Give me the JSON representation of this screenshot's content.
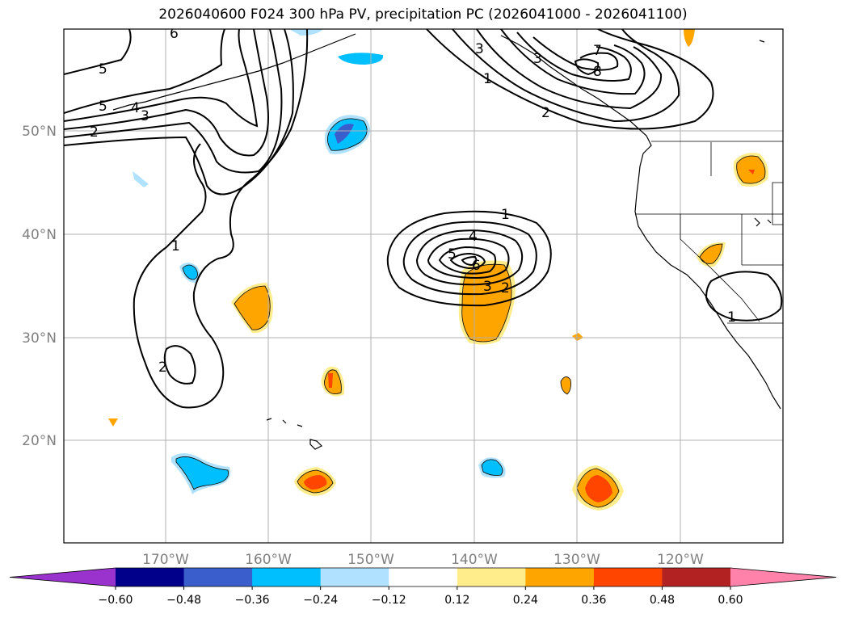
{
  "title": "2026040600 F024 300 hPa PV, precipitation PC (2026041000 - 2026041100)",
  "lat_labels": [
    "50°N",
    "40°N",
    "30°N",
    "20°N"
  ],
  "lon_labels": [
    "170°W",
    "160°W",
    "150°W",
    "140°W",
    "130°W",
    "120°W"
  ],
  "colorbar": {
    "colors": [
      "#9a32cd",
      "#00008b",
      "#3a5fcd",
      "#00bfff",
      "#b0e2ff",
      "#ffffff",
      "#ffec8b",
      "#ffa500",
      "#ff4500",
      "#b22222",
      "#ff82ab"
    ],
    "tick_labels": [
      "−0.60",
      "−0.48",
      "−0.36",
      "−0.24",
      "−0.12",
      "0.12",
      "0.24",
      "0.36",
      "0.48",
      "0.60"
    ]
  },
  "contour_labels": [
    {
      "text": "5"
    },
    {
      "text": "5"
    },
    {
      "text": "4"
    },
    {
      "text": "3"
    },
    {
      "text": "2"
    },
    {
      "text": "6"
    },
    {
      "text": "1"
    },
    {
      "text": "2"
    },
    {
      "text": "3"
    },
    {
      "text": "1"
    },
    {
      "text": "2"
    },
    {
      "text": "7"
    },
    {
      "text": "8"
    },
    {
      "text": "3"
    },
    {
      "text": "1"
    },
    {
      "text": "4"
    },
    {
      "text": "5"
    },
    {
      "text": "6"
    },
    {
      "text": "3"
    },
    {
      "text": "2"
    },
    {
      "text": "1"
    }
  ]
}
